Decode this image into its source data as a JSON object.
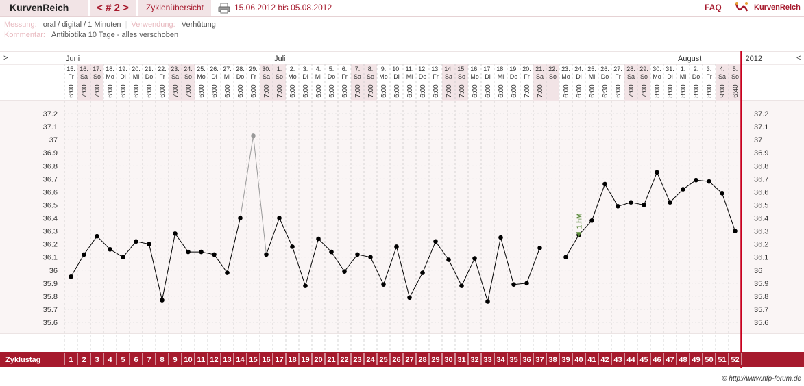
{
  "header": {
    "brand": "KurvenReich",
    "cycle_nav": "< # 2 >",
    "overview_link": "Zyklenübersicht",
    "print_icon": "printer-icon",
    "date_range": "15.06.2012 bis 05.08.2012",
    "faq": "FAQ",
    "brand_right": "KurvenReich",
    "logo_icon": "kurvenreich-logo-icon"
  },
  "info": {
    "messung_label": "Messung:",
    "messung_value": "oral / digital / 1 Minuten",
    "pipe": "|",
    "verwendung_label": "Verwendung:",
    "verwendung_value": "Verhütung",
    "kommentar_label": "Kommentar:",
    "kommentar_value": "Antibiotika 10 Tage - alles verschoben"
  },
  "chart_data": {
    "type": "line",
    "ylim": [
      35.6,
      37.2
    ],
    "grid": true,
    "left_arrow": ">",
    "right_arrow": "<",
    "year_label": "2012",
    "row_label": "Zyklustag",
    "copyright": "© http://www.nfp-forum.de",
    "months": [
      {
        "label": "Juni",
        "day_index": 0
      },
      {
        "label": "Juli",
        "day_index": 16
      },
      {
        "label": "August",
        "day_index": 47
      }
    ],
    "y_ticks": [
      "37.2",
      "37.1",
      "37",
      "36.9",
      "36.8",
      "36.7",
      "36.6",
      "36.5",
      "36.4",
      "36.3",
      "36.2",
      "36.1",
      "36",
      "35.9",
      "35.8",
      "35.7",
      "35.6"
    ],
    "days": [
      {
        "date": "15.",
        "wd": "Fr",
        "time": "6:00",
        "weekend": false
      },
      {
        "date": "16.",
        "wd": "Sa",
        "time": "7:00",
        "weekend": true
      },
      {
        "date": "17.",
        "wd": "So",
        "time": "7:00",
        "weekend": true
      },
      {
        "date": "18.",
        "wd": "Mo",
        "time": "6:00",
        "weekend": false
      },
      {
        "date": "19.",
        "wd": "Di",
        "time": "6:00",
        "weekend": false
      },
      {
        "date": "20.",
        "wd": "Mi",
        "time": "6:00",
        "weekend": false
      },
      {
        "date": "21.",
        "wd": "Do",
        "time": "6:00",
        "weekend": false
      },
      {
        "date": "22.",
        "wd": "Fr",
        "time": "6:00",
        "weekend": false
      },
      {
        "date": "23.",
        "wd": "Sa",
        "time": "7:00",
        "weekend": true
      },
      {
        "date": "24.",
        "wd": "So",
        "time": "7:00",
        "weekend": true
      },
      {
        "date": "25.",
        "wd": "Mo",
        "time": "6:00",
        "weekend": false
      },
      {
        "date": "26.",
        "wd": "Di",
        "time": "6:00",
        "weekend": false
      },
      {
        "date": "27.",
        "wd": "Mi",
        "time": "6:00",
        "weekend": false
      },
      {
        "date": "28.",
        "wd": "Do",
        "time": "6:00",
        "weekend": false
      },
      {
        "date": "29.",
        "wd": "Fr",
        "time": "6:00",
        "weekend": false
      },
      {
        "date": "30.",
        "wd": "Sa",
        "time": "7:00",
        "weekend": true
      },
      {
        "date": "1.",
        "wd": "So",
        "time": "7:00",
        "weekend": true
      },
      {
        "date": "2.",
        "wd": "Mo",
        "time": "6:00",
        "weekend": false
      },
      {
        "date": "3.",
        "wd": "Di",
        "time": "6:00",
        "weekend": false
      },
      {
        "date": "4.",
        "wd": "Mi",
        "time": "6:00",
        "weekend": false
      },
      {
        "date": "5.",
        "wd": "Do",
        "time": "6:00",
        "weekend": false
      },
      {
        "date": "6.",
        "wd": "Fr",
        "time": "6:00",
        "weekend": false
      },
      {
        "date": "7.",
        "wd": "Sa",
        "time": "7:00",
        "weekend": true
      },
      {
        "date": "8.",
        "wd": "So",
        "time": "7:00",
        "weekend": true
      },
      {
        "date": "9.",
        "wd": "Mo",
        "time": "6:00",
        "weekend": false
      },
      {
        "date": "10.",
        "wd": "Di",
        "time": "6:00",
        "weekend": false
      },
      {
        "date": "11.",
        "wd": "Mi",
        "time": "6:00",
        "weekend": false
      },
      {
        "date": "12.",
        "wd": "Do",
        "time": "6:00",
        "weekend": false
      },
      {
        "date": "13.",
        "wd": "Fr",
        "time": "6:00",
        "weekend": false
      },
      {
        "date": "14.",
        "wd": "Sa",
        "time": "7:00",
        "weekend": true
      },
      {
        "date": "15.",
        "wd": "So",
        "time": "7:00",
        "weekend": true
      },
      {
        "date": "16.",
        "wd": "Mo",
        "time": "6:00",
        "weekend": false
      },
      {
        "date": "17.",
        "wd": "Di",
        "time": "6:00",
        "weekend": false
      },
      {
        "date": "18.",
        "wd": "Mi",
        "time": "6:00",
        "weekend": false
      },
      {
        "date": "19.",
        "wd": "Do",
        "time": "6:00",
        "weekend": false
      },
      {
        "date": "20.",
        "wd": "Fr",
        "time": "7:00",
        "weekend": false
      },
      {
        "date": "21.",
        "wd": "Sa",
        "time": "7:00",
        "weekend": true
      },
      {
        "date": "22.",
        "wd": "So",
        "time": "",
        "weekend": true
      },
      {
        "date": "23.",
        "wd": "Mo",
        "time": "6:00",
        "weekend": false
      },
      {
        "date": "24.",
        "wd": "Di",
        "time": "6:00",
        "weekend": false
      },
      {
        "date": "25.",
        "wd": "Mi",
        "time": "6:00",
        "weekend": false
      },
      {
        "date": "26.",
        "wd": "Do",
        "time": "6:30",
        "weekend": false
      },
      {
        "date": "27.",
        "wd": "Fr",
        "time": "6:00",
        "weekend": false
      },
      {
        "date": "28.",
        "wd": "Sa",
        "time": "7:00",
        "weekend": true
      },
      {
        "date": "29.",
        "wd": "So",
        "time": "7:00",
        "weekend": true
      },
      {
        "date": "30.",
        "wd": "Mo",
        "time": "8:00",
        "weekend": false
      },
      {
        "date": "31.",
        "wd": "Di",
        "time": "8:00",
        "weekend": false
      },
      {
        "date": "1.",
        "wd": "Mi",
        "time": "8:00",
        "weekend": false
      },
      {
        "date": "2.",
        "wd": "Do",
        "time": "8:00",
        "weekend": false
      },
      {
        "date": "3.",
        "wd": "Fr",
        "time": "8:00",
        "weekend": false
      },
      {
        "date": "4.",
        "wd": "Sa",
        "time": "9:00",
        "weekend": true
      },
      {
        "date": "5.",
        "wd": "So",
        "time": "6:40",
        "weekend": true
      }
    ],
    "series": [
      {
        "x": [
          1,
          2,
          3,
          4,
          5,
          6,
          7,
          8,
          9,
          10,
          11,
          12,
          13,
          14,
          15,
          16,
          17,
          18,
          19,
          20,
          21,
          22,
          23,
          24,
          25,
          26,
          27,
          28,
          29,
          30,
          31,
          32,
          33,
          34,
          35,
          36,
          37,
          38,
          39,
          40,
          41,
          42,
          43,
          44,
          45,
          46,
          47,
          48,
          49,
          50,
          51,
          52
        ],
        "values": [
          35.95,
          36.12,
          36.26,
          36.16,
          36.1,
          36.22,
          36.2,
          35.77,
          36.28,
          36.14,
          36.14,
          36.12,
          35.98,
          36.4,
          37.03,
          36.12,
          36.4,
          36.18,
          35.88,
          36.24,
          36.14,
          35.99,
          36.12,
          36.1,
          35.89,
          36.18,
          35.79,
          35.98,
          36.22,
          36.08,
          35.88,
          36.09,
          35.76,
          36.25,
          35.89,
          35.9,
          36.17,
          null,
          36.1,
          36.27,
          36.38,
          36.66,
          36.49,
          36.52,
          36.5,
          36.75,
          36.52,
          36.62,
          36.69,
          36.68,
          36.59,
          36.3
        ]
      }
    ],
    "excluded_points": [
      15
    ],
    "marker": {
      "label": "1.hM",
      "day": 40,
      "value": 36.27,
      "color": "#5a8a3a"
    },
    "colors": {
      "accent": "#a61a2d",
      "weekend": "#f2e4e6",
      "grid": "#cccccc"
    }
  }
}
